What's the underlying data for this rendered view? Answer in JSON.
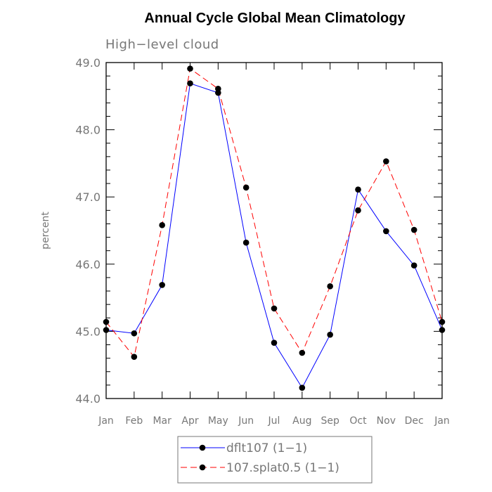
{
  "chart_data": {
    "type": "line",
    "title": "Annual Cycle Global Mean Climatology",
    "subtitle": "High−level cloud",
    "ylabel": "percent",
    "xlabel": "",
    "categories": [
      "Jan",
      "Feb",
      "Mar",
      "Apr",
      "May",
      "Jun",
      "Jul",
      "Aug",
      "Sep",
      "Oct",
      "Nov",
      "Dec",
      "Jan"
    ],
    "ylim": [
      44.0,
      49.0
    ],
    "yticks": [
      "44.0",
      "45.0",
      "46.0",
      "47.0",
      "48.0",
      "49.0"
    ],
    "grid": false,
    "legend_position": "bottom",
    "series": [
      {
        "name": "dflt107 (1−1)",
        "color": "#0000ff",
        "dash": "solid",
        "values": [
          45.02,
          44.97,
          45.69,
          48.69,
          48.55,
          46.32,
          44.83,
          44.16,
          44.95,
          47.11,
          46.49,
          45.98,
          45.02
        ]
      },
      {
        "name": "107.splat0.5 (1−1)",
        "color": "#ff0000",
        "dash": "dashed",
        "values": [
          45.14,
          44.62,
          46.58,
          48.91,
          48.61,
          47.14,
          45.34,
          44.68,
          45.67,
          46.8,
          47.53,
          46.51,
          45.14
        ]
      }
    ]
  }
}
